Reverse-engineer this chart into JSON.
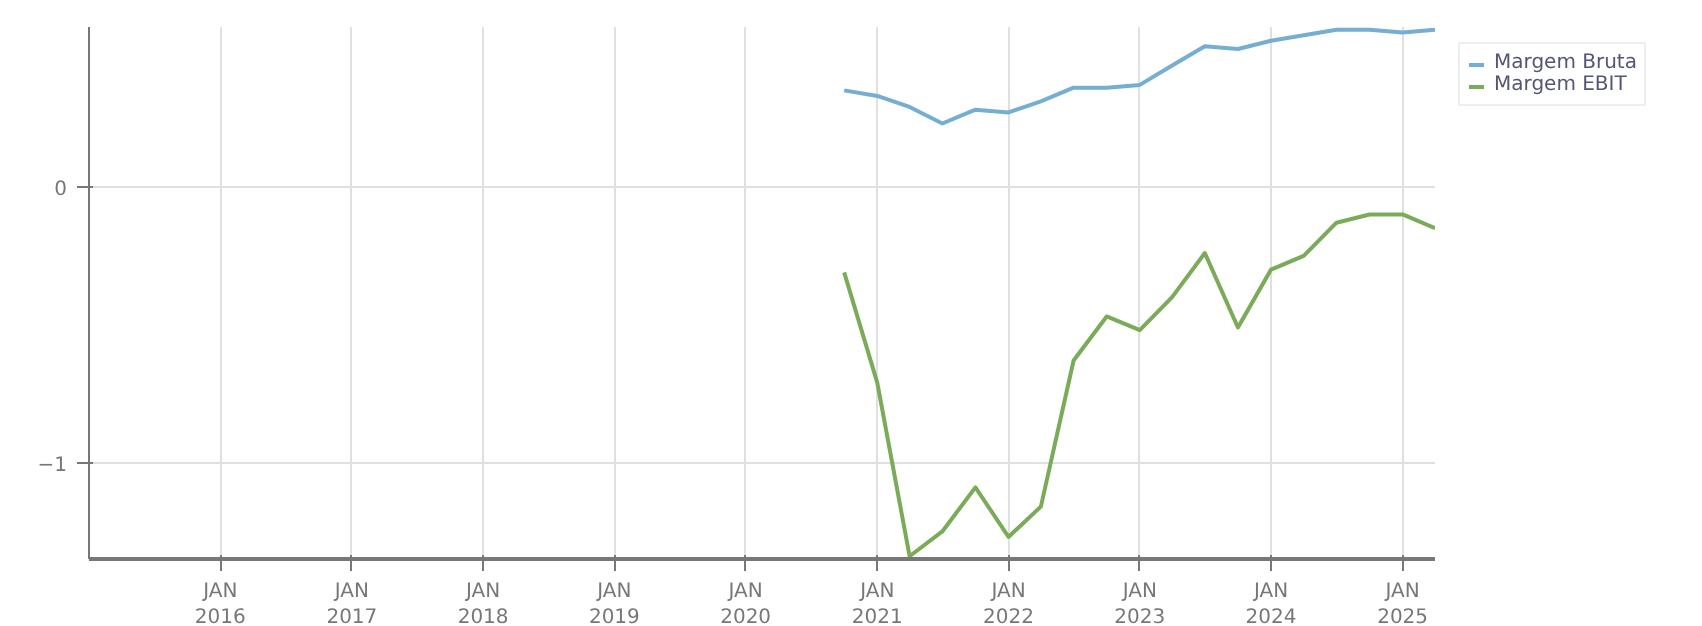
{
  "chart_data": {
    "type": "line",
    "x": [
      "2020-10",
      "2021-01",
      "2021-04",
      "2021-07",
      "2021-10",
      "2022-01",
      "2022-04",
      "2022-07",
      "2022-10",
      "2023-01",
      "2023-04",
      "2023-07",
      "2023-10",
      "2024-01",
      "2024-04",
      "2024-07",
      "2024-10",
      "2025-01",
      "2025-04"
    ],
    "series": [
      {
        "name": "Margem Bruta",
        "color": "#74afd3",
        "values": [
          0.35,
          0.33,
          0.29,
          0.23,
          0.28,
          0.27,
          0.31,
          0.36,
          0.36,
          0.37,
          0.44,
          0.51,
          0.5,
          0.53,
          0.55,
          0.57,
          0.57,
          0.56,
          0.57
        ]
      },
      {
        "name": "Margem EBIT",
        "color": "#7aab59",
        "values": [
          -0.31,
          -0.71,
          -1.34,
          -1.25,
          -1.09,
          -1.27,
          -1.16,
          -0.63,
          -0.47,
          -0.52,
          -0.4,
          -0.24,
          -0.51,
          -0.3,
          -0.25,
          -0.13,
          -0.1,
          -0.1,
          -0.15
        ]
      }
    ],
    "xlim": [
      "2015-01",
      "2025-04"
    ],
    "xticks": [
      {
        "value": "2016-01",
        "label": "JAN\n2016"
      },
      {
        "value": "2017-01",
        "label": "JAN\n2017"
      },
      {
        "value": "2018-01",
        "label": "JAN\n2018"
      },
      {
        "value": "2019-01",
        "label": "JAN\n2019"
      },
      {
        "value": "2020-01",
        "label": "JAN\n2020"
      },
      {
        "value": "2021-01",
        "label": "JAN\n2021"
      },
      {
        "value": "2022-01",
        "label": "JAN\n2022"
      },
      {
        "value": "2023-01",
        "label": "JAN\n2023"
      },
      {
        "value": "2024-01",
        "label": "JAN\n2024"
      },
      {
        "value": "2025-01",
        "label": "JAN\n2025"
      }
    ],
    "ylim": [
      -1.35,
      0.58
    ],
    "yticks": [
      -1,
      0
    ],
    "grid": true,
    "legend": "top right",
    "marker": "none",
    "line_style": "solid"
  }
}
